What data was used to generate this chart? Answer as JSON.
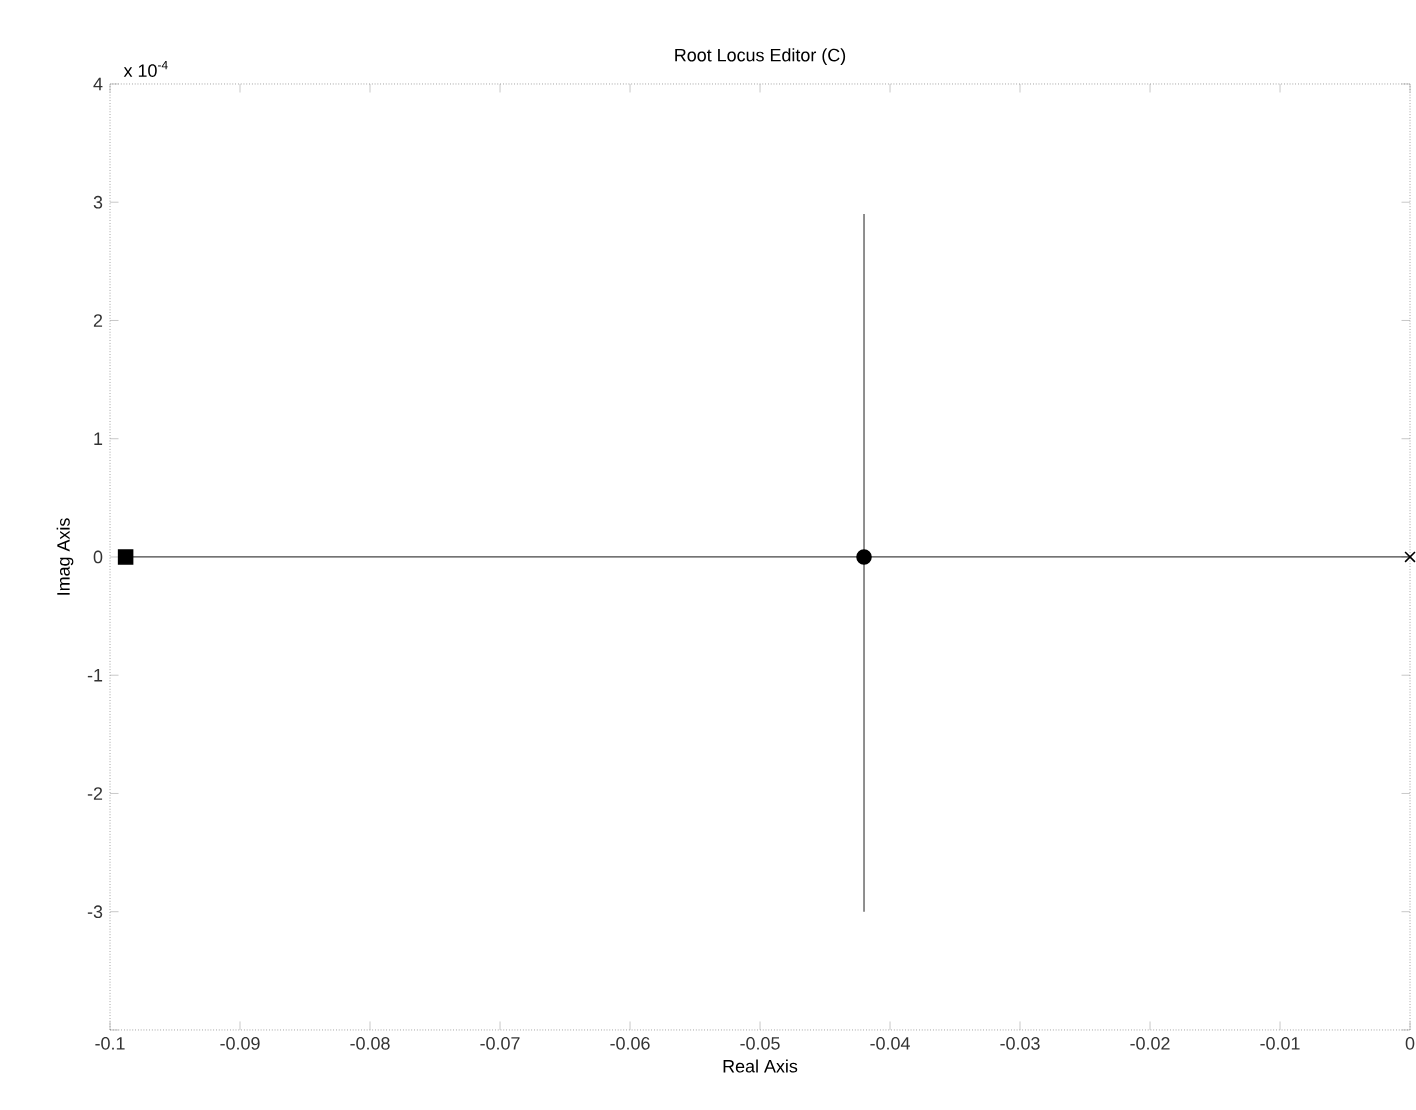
{
  "chart_data": {
    "type": "line",
    "title": "Root Locus Editor (C)",
    "xlabel": "Real Axis",
    "ylabel": "Imag Axis",
    "annotations": [
      "x 10$^{-4}$"
    ],
    "xlim": [
      -0.1,
      0
    ],
    "xticks": [
      -0.1,
      -0.09,
      -0.08,
      -0.07,
      -0.06,
      -0.05,
      -0.04,
      -0.03,
      -0.02,
      -0.01,
      0
    ],
    "ylim": [
      -4,
      4
    ],
    "yticks": [
      {
        "value": -4,
        "label": null
      },
      -3,
      -2,
      -1,
      0,
      1,
      2,
      3,
      4
    ],
    "grid": false,
    "series": [
      {
        "color": "#444444",
        "marker": "none",
        "x": [
          -0.0988,
          0
        ],
        "values": [
          0,
          0
        ]
      },
      {
        "color": "#444444",
        "marker": "none",
        "x": [
          -0.042,
          -0.042
        ],
        "values": [
          2.9,
          -3
        ]
      },
      {
        "type": "scatter",
        "color": "#000000",
        "marker": "square",
        "x": [
          -0.0988
        ],
        "values": [
          0
        ]
      },
      {
        "type": "scatter",
        "color": "#000000",
        "marker": "circle",
        "x": [
          -0.042
        ],
        "values": [
          0
        ]
      },
      {
        "type": "scatter",
        "color": "#000000",
        "marker": "cross",
        "x": [
          0
        ],
        "values": [
          0
        ]
      }
    ]
  }
}
